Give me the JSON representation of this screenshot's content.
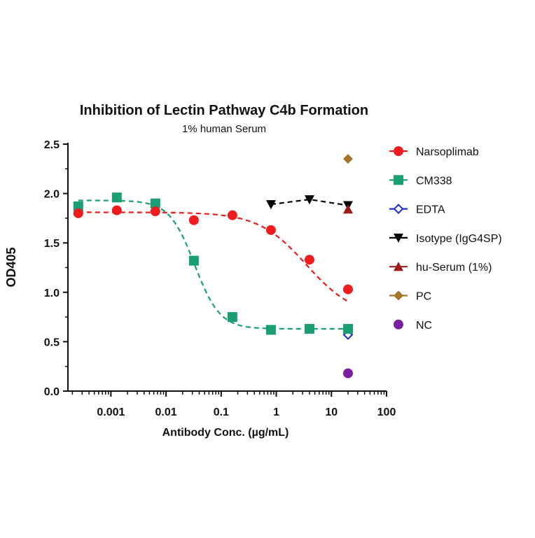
{
  "chart_data": {
    "type": "scatter",
    "title": "Inhibition of Lectin Pathway C4b Formation",
    "subtitle": "1% human Serum",
    "xlabel": "Antibody Conc. (µg/mL)",
    "ylabel": "OD405",
    "xscale": "log",
    "xlim": [
      0.000166,
      100
    ],
    "ylim": [
      0,
      2.5
    ],
    "xticks": [
      0.001,
      0.01,
      0.1,
      1,
      10,
      100
    ],
    "xtick_labels": [
      "0.001",
      "0.01",
      "0.1",
      "1",
      "10",
      "100"
    ],
    "yticks": [
      0,
      0.5,
      1.0,
      1.5,
      2.0,
      2.5
    ],
    "ytick_labels": [
      "0.0",
      "0.5",
      "1.0",
      "1.5",
      "2.0",
      "2.5"
    ],
    "grid": false,
    "legend_position": "right",
    "series": [
      {
        "name": "Narsoplimab",
        "marker": "circle",
        "color": "#ee1c1c",
        "line": "dashed-fit",
        "x": [
          0.000256,
          0.00128,
          0.0064,
          0.032,
          0.16,
          0.8,
          4,
          20
        ],
        "y": [
          1.8,
          1.83,
          1.82,
          1.73,
          1.78,
          1.63,
          1.33,
          1.03
        ]
      },
      {
        "name": "CM338",
        "marker": "square",
        "color": "#1a9e74",
        "line": "dashed-fit",
        "x": [
          0.000256,
          0.00128,
          0.0064,
          0.032,
          0.16,
          0.8,
          4,
          20
        ],
        "y": [
          1.87,
          1.96,
          1.9,
          1.32,
          0.75,
          0.62,
          0.63,
          0.63
        ]
      },
      {
        "name": "EDTA",
        "marker": "diamond-open",
        "color": "#1a2ccc",
        "line": "none",
        "x": [
          20
        ],
        "y": [
          0.57
        ]
      },
      {
        "name": "Isotype (IgG4SP)",
        "marker": "triangle-down",
        "color": "#000000",
        "line": "dashed",
        "x": [
          0.8,
          4,
          20
        ],
        "y": [
          1.89,
          1.94,
          1.88
        ]
      },
      {
        "name": "hu-Serum (1%)",
        "marker": "triangle-up",
        "color": "#9b1b1b",
        "line": "none",
        "x": [
          20
        ],
        "y": [
          1.84
        ]
      },
      {
        "name": "PC",
        "marker": "diamond",
        "color": "#a8742a",
        "line": "none",
        "x": [
          20
        ],
        "y": [
          2.35
        ]
      },
      {
        "name": "NC",
        "marker": "circle",
        "color": "#7b1fa2",
        "line": "none",
        "x": [
          20
        ],
        "y": [
          0.18
        ]
      }
    ]
  }
}
